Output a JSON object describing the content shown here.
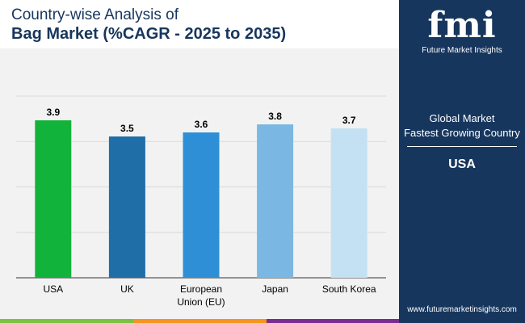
{
  "header": {
    "title_line1": "Country-wise Analysis of",
    "title_line2": "Bag Market (%CAGR - 2025 to 2035)"
  },
  "panel": {
    "logo_text": "fmi",
    "logo_subtitle": "Future Market Insights",
    "label_line1": "Global Market",
    "label_line2": "Fastest Growing Country",
    "value": "USA",
    "website": "www.futuremarketinsights.com"
  },
  "colors": {
    "panel_bg": "#17365d",
    "title": "#17365d",
    "stripe": [
      "#7bc142",
      "#f7941d",
      "#7b2c8f",
      "#17365d"
    ]
  },
  "chart_data": {
    "type": "bar",
    "title": "Bag Market (%CAGR - 2025 to 2035)",
    "xlabel": "",
    "ylabel": "",
    "ylim": [
      0,
      4.5
    ],
    "grid": true,
    "categories": [
      [
        "USA"
      ],
      [
        "UK"
      ],
      [
        "European",
        "Union (EU)"
      ],
      [
        "Japan"
      ],
      [
        "South Korea"
      ]
    ],
    "values": [
      3.9,
      3.5,
      3.6,
      3.8,
      3.7
    ],
    "value_labels": [
      "3.9",
      "3.5",
      "3.6",
      "3.8",
      "3.7"
    ],
    "bar_colors": [
      "#12b33a",
      "#1f6ea8",
      "#2f8fd6",
      "#7bb7e3",
      "#c4e1f3"
    ],
    "value_label_color": "#000000"
  }
}
